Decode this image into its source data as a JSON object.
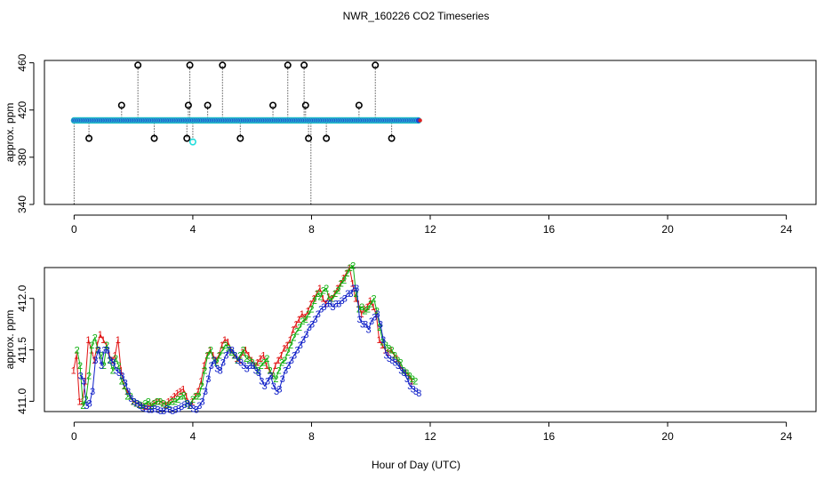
{
  "figure": {
    "title": "NWR_160226  CO2 Timeseries",
    "xlabel": "Hour of Day (UTC)"
  },
  "chart_data": [
    {
      "type": "scatter",
      "panel": "top",
      "ylabel": "approx. ppm",
      "xlim": [
        -1,
        25
      ],
      "ylim": [
        340,
        462
      ],
      "xticks": [
        0,
        4,
        8,
        12,
        16,
        20,
        24
      ],
      "yticks": [
        340,
        380,
        420,
        460
      ],
      "grid": false,
      "baseline": 411.2,
      "baseline_range": [
        0,
        11.6
      ],
      "spikes": [
        {
          "x": 0.0,
          "y": 340
        },
        {
          "x": 0.5,
          "y": 396
        },
        {
          "x": 1.6,
          "y": 424
        },
        {
          "x": 2.15,
          "y": 458
        },
        {
          "x": 2.7,
          "y": 396
        },
        {
          "x": 3.8,
          "y": 396
        },
        {
          "x": 3.85,
          "y": 424
        },
        {
          "x": 3.9,
          "y": 458
        },
        {
          "x": 4.0,
          "y": 393,
          "highlight": true
        },
        {
          "x": 4.5,
          "y": 424
        },
        {
          "x": 5.0,
          "y": 458
        },
        {
          "x": 5.6,
          "y": 396
        },
        {
          "x": 6.7,
          "y": 424
        },
        {
          "x": 7.2,
          "y": 458
        },
        {
          "x": 7.75,
          "y": 458
        },
        {
          "x": 7.8,
          "y": 424
        },
        {
          "x": 7.9,
          "y": 396
        },
        {
          "x": 7.98,
          "y": 340
        },
        {
          "x": 8.5,
          "y": 396
        },
        {
          "x": 9.6,
          "y": 424
        },
        {
          "x": 10.15,
          "y": 458
        },
        {
          "x": 10.7,
          "y": 396
        }
      ],
      "colors": {
        "baseline_fill": "#1f3fd8",
        "baseline_edge": "#28c8c8",
        "spike": "#000000",
        "highlight": "#22dddd",
        "accent": "#e02020"
      }
    },
    {
      "type": "line",
      "panel": "bottom",
      "ylabel": "approx. ppm",
      "xlim": [
        -1,
        25
      ],
      "ylim": [
        410.9,
        412.3
      ],
      "xticks": [
        0,
        4,
        8,
        12,
        16,
        20,
        24
      ],
      "yticks": [
        411.0,
        411.5,
        412.0
      ],
      "grid": false,
      "marker_labels": [
        "1",
        "2",
        "3"
      ],
      "x": [
        0.1,
        0.2,
        0.3,
        0.4,
        0.5,
        0.6,
        0.7,
        0.8,
        0.9,
        1.0,
        1.1,
        1.2,
        1.3,
        1.4,
        1.5,
        1.6,
        1.7,
        1.8,
        1.9,
        2.0,
        2.1,
        2.2,
        2.3,
        2.4,
        2.5,
        2.6,
        2.7,
        2.8,
        2.9,
        3.0,
        3.1,
        3.2,
        3.3,
        3.4,
        3.5,
        3.6,
        3.7,
        3.8,
        3.9,
        4.0,
        4.1,
        4.2,
        4.3,
        4.4,
        4.5,
        4.6,
        4.7,
        4.8,
        4.9,
        5.0,
        5.1,
        5.2,
        5.3,
        5.4,
        5.5,
        5.6,
        5.7,
        5.8,
        5.9,
        6.0,
        6.1,
        6.2,
        6.3,
        6.4,
        6.5,
        6.6,
        6.7,
        6.8,
        6.9,
        7.0,
        7.1,
        7.2,
        7.3,
        7.4,
        7.5,
        7.6,
        7.7,
        7.8,
        7.9,
        8.0,
        8.1,
        8.2,
        8.3,
        8.4,
        8.5,
        8.6,
        8.7,
        8.8,
        8.9,
        9.0,
        9.1,
        9.2,
        9.3,
        9.4,
        9.5,
        9.6,
        9.7,
        9.8,
        9.9,
        10.0,
        10.1,
        10.2,
        10.3,
        10.4,
        10.5,
        10.6,
        10.7,
        10.8,
        10.9,
        11.0,
        11.1,
        11.2,
        11.3,
        11.4,
        11.5
      ],
      "series": [
        {
          "name": "1",
          "color": "#e01010",
          "values": [
            411.3,
            411.45,
            411.0,
            411.0,
            411.2,
            411.6,
            411.5,
            411.4,
            411.55,
            411.65,
            411.6,
            411.55,
            411.45,
            411.4,
            411.45,
            411.6,
            411.3,
            411.15,
            411.1,
            411.05,
            411.0,
            410.98,
            410.97,
            410.96,
            410.95,
            410.95,
            410.96,
            410.98,
            411.0,
            411.0,
            410.98,
            410.97,
            411.0,
            411.02,
            411.05,
            411.08,
            411.1,
            411.12,
            411.05,
            410.96,
            411.0,
            411.05,
            411.1,
            411.2,
            411.35,
            411.45,
            411.5,
            411.45,
            411.4,
            411.45,
            411.55,
            411.6,
            411.58,
            411.5,
            411.45,
            411.42,
            411.4,
            411.48,
            411.5,
            411.45,
            411.4,
            411.35,
            411.38,
            411.42,
            411.45,
            411.35,
            411.3,
            411.25,
            411.35,
            411.4,
            411.45,
            411.52,
            411.55,
            411.6,
            411.7,
            411.75,
            411.8,
            411.85,
            411.82,
            411.88,
            411.95,
            412.0,
            412.05,
            412.1,
            412.0,
            411.95,
            412.02,
            412.0,
            412.05,
            412.1,
            412.15,
            412.2,
            412.25,
            412.3,
            412.15,
            412.0,
            411.95,
            411.85,
            411.9,
            411.92,
            411.98,
            411.92,
            411.85,
            411.6,
            411.55,
            411.5,
            411.48,
            411.5,
            411.45,
            411.42,
            411.35,
            411.3,
            411.28,
            411.25,
            411.2
          ]
        },
        {
          "name": "2",
          "color": "#10b010",
          "values": [
            411.5,
            411.35,
            410.96,
            411.02,
            411.25,
            411.55,
            411.62,
            411.5,
            411.45,
            411.35,
            411.55,
            411.4,
            411.3,
            411.42,
            411.35,
            411.2,
            411.15,
            411.05,
            411.05,
            411.0,
            410.98,
            410.97,
            410.96,
            410.98,
            411.0,
            410.96,
            410.98,
            411.0,
            411.0,
            410.98,
            410.96,
            410.97,
            411.0,
            411.0,
            411.02,
            411.05,
            411.06,
            410.98,
            410.96,
            411.02,
            411.05,
            411.05,
            411.15,
            411.3,
            411.45,
            411.5,
            411.4,
            411.38,
            411.45,
            411.5,
            411.55,
            411.52,
            411.48,
            411.45,
            411.4,
            411.45,
            411.5,
            411.42,
            411.4,
            411.38,
            411.35,
            411.3,
            411.35,
            411.38,
            411.42,
            411.3,
            411.25,
            411.22,
            411.3,
            411.38,
            411.4,
            411.48,
            411.55,
            411.62,
            411.68,
            411.72,
            411.78,
            411.8,
            411.85,
            411.9,
            411.98,
            412.05,
            412.02,
            412.08,
            412.1,
            411.98,
            412.0,
            412.05,
            412.08,
            412.15,
            412.18,
            412.25,
            412.3,
            412.32,
            412.05,
            411.9,
            411.92,
            411.88,
            411.9,
            411.95,
            412.0,
            411.88,
            411.72,
            411.58,
            411.55,
            411.52,
            411.5,
            411.45,
            411.4,
            411.38,
            411.3,
            411.28,
            411.25,
            411.22,
            411.2
          ]
        },
        {
          "name": "3",
          "color": "#1020c8",
          "values": [
            411.25,
            411.2,
            410.96,
            410.98,
            411.1,
            411.4,
            411.5,
            411.35,
            411.5,
            411.5,
            411.4,
            411.38,
            411.3,
            411.28,
            411.25,
            411.18,
            411.1,
            411.03,
            411.0,
            410.98,
            410.96,
            410.94,
            410.93,
            410.92,
            410.92,
            410.93,
            410.92,
            410.91,
            410.91,
            410.93,
            410.92,
            410.91,
            410.92,
            410.93,
            410.95,
            410.97,
            410.98,
            410.96,
            410.93,
            410.92,
            410.96,
            411.0,
            411.1,
            411.22,
            411.35,
            411.4,
            411.32,
            411.3,
            411.38,
            411.45,
            411.5,
            411.5,
            411.45,
            411.4,
            411.38,
            411.35,
            411.32,
            411.35,
            411.35,
            411.3,
            411.28,
            411.2,
            411.15,
            411.2,
            411.25,
            411.15,
            411.1,
            411.12,
            411.22,
            411.3,
            411.35,
            411.4,
            411.45,
            411.5,
            411.55,
            411.6,
            411.65,
            411.72,
            411.75,
            411.8,
            411.85,
            411.9,
            411.92,
            411.95,
            411.95,
            411.92,
            411.95,
            411.95,
            411.98,
            412.0,
            412.05,
            412.05,
            412.1,
            412.1,
            411.8,
            411.75,
            411.75,
            411.7,
            411.78,
            411.82,
            411.85,
            411.75,
            411.6,
            411.45,
            411.42,
            411.4,
            411.38,
            411.35,
            411.3,
            411.28,
            411.22,
            411.15,
            411.12,
            411.1,
            411.08
          ]
        }
      ]
    }
  ]
}
